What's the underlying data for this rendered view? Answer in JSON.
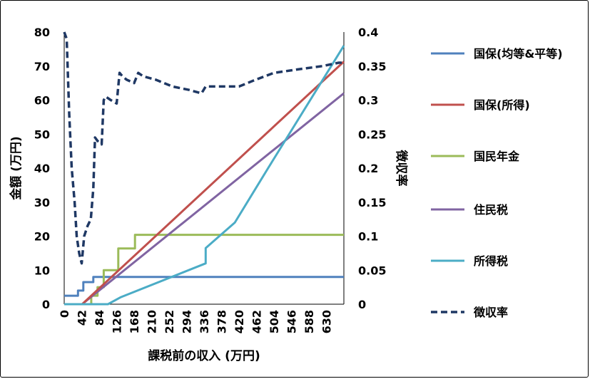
{
  "chart_data": {
    "type": "line",
    "xlabel": "課税前の収入 (万円)",
    "ylabel_left": "金額 (万円)",
    "ylabel_right": "徴収率",
    "xlim": [
      0,
      672
    ],
    "ylim_left": [
      0,
      80
    ],
    "ylim_right": [
      0,
      0.4
    ],
    "x_ticks": [
      "0",
      "42",
      "84",
      "126",
      "168",
      "210",
      "252",
      "294",
      "336",
      "378",
      "420",
      "462",
      "504",
      "546",
      "588",
      "630"
    ],
    "y_ticks_left": [
      "0",
      "10",
      "20",
      "30",
      "40",
      "50",
      "60",
      "70",
      "80"
    ],
    "y_ticks_right": [
      "0",
      "0.05",
      "0.1",
      "0.15",
      "0.2",
      "0.25",
      "0.3",
      "0.35",
      "0.4"
    ],
    "grid": false,
    "legend_position": "right",
    "series": [
      {
        "name": "国保(均等&平等)",
        "axis": "left",
        "color": "#4F81BD",
        "dash": false,
        "x": [
          0,
          33,
          33,
          46,
          46,
          70,
          70,
          672
        ],
        "values": [
          2.5,
          2.5,
          4,
          4,
          6.5,
          6.5,
          8,
          8
        ]
      },
      {
        "name": "国保(所得)",
        "axis": "left",
        "color": "#C0504D",
        "dash": false,
        "x": [
          0,
          43,
          672
        ],
        "values": [
          0,
          0,
          71.3
        ]
      },
      {
        "name": "国民年金",
        "axis": "left",
        "color": "#9BBB59",
        "dash": false,
        "x": [
          0,
          65,
          65,
          80,
          80,
          95,
          95,
          130,
          130,
          170,
          170,
          672
        ],
        "values": [
          0,
          0,
          2.5,
          2.5,
          5,
          5,
          10,
          10,
          16.4,
          16.4,
          20.4,
          20.4
        ]
      },
      {
        "name": "住民税",
        "axis": "left",
        "color": "#8064A2",
        "dash": false,
        "x": [
          0,
          43,
          672
        ],
        "values": [
          0,
          0,
          62
        ]
      },
      {
        "name": "所得税",
        "axis": "left",
        "color": "#4BACC6",
        "dash": false,
        "x": [
          0,
          105,
          135,
          340,
          340,
          410,
          490,
          672
        ],
        "values": [
          0,
          0,
          2,
          12,
          16.5,
          24,
          40,
          76
        ]
      },
      {
        "name": "徴収率",
        "axis": "right",
        "color": "#1F3864",
        "dash": true,
        "x": [
          0,
          6,
          12,
          18,
          25,
          30,
          36,
          42,
          48,
          56,
          64,
          70,
          74,
          80,
          90,
          95,
          100,
          112,
          126,
          133,
          140,
          150,
          168,
          178,
          190,
          220,
          260,
          300,
          330,
          340,
          380,
          420,
          460,
          504,
          560,
          620,
          660,
          672
        ],
        "values": [
          0.4,
          0.39,
          0.28,
          0.2,
          0.15,
          0.1,
          0.075,
          0.06,
          0.1,
          0.115,
          0.125,
          0.17,
          0.245,
          0.24,
          0.235,
          0.3,
          0.305,
          0.3,
          0.295,
          0.34,
          0.335,
          0.33,
          0.325,
          0.34,
          0.335,
          0.33,
          0.32,
          0.315,
          0.31,
          0.32,
          0.32,
          0.32,
          0.33,
          0.34,
          0.345,
          0.35,
          0.355,
          0.355
        ]
      }
    ]
  }
}
